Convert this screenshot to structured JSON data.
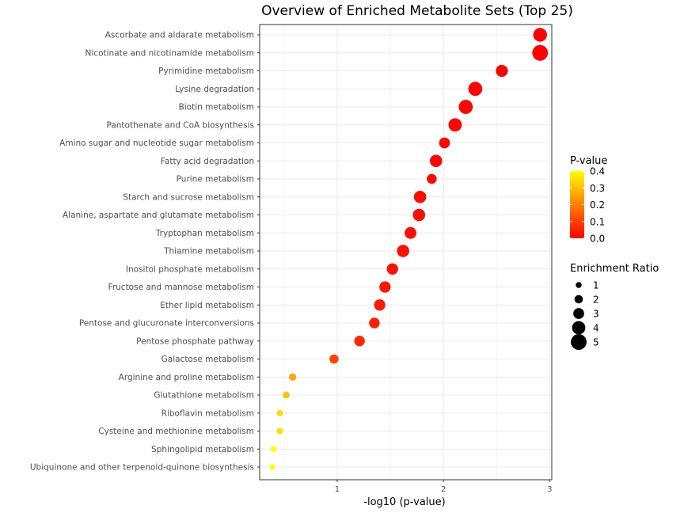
{
  "chart_data": {
    "type": "scatter",
    "title": "Overview of Enriched Metabolite Sets (Top 25)",
    "xlabel": "-log10 (p-value)",
    "ylabel": "",
    "xlim": [
      0.27,
      3.02
    ],
    "xticks": [
      "1",
      "2",
      "3"
    ],
    "grid": true,
    "points": [
      {
        "label": "Ascorbate and aldarate metabolism",
        "x": 2.91,
        "p": 0.0012,
        "ratio": 4.2
      },
      {
        "label": "Nicotinate and nicotinamide metabolism",
        "x": 2.91,
        "p": 0.0012,
        "ratio": 5.0
      },
      {
        "label": "Pyrimidine metabolism",
        "x": 2.55,
        "p": 0.0028,
        "ratio": 3.5
      },
      {
        "label": "Lysine degradation",
        "x": 2.3,
        "p": 0.005,
        "ratio": 4.3
      },
      {
        "label": "Biotin metabolism",
        "x": 2.21,
        "p": 0.0062,
        "ratio": 4.3
      },
      {
        "label": "Pantothenate and CoA biosynthesis",
        "x": 2.11,
        "p": 0.0078,
        "ratio": 4.0
      },
      {
        "label": "Amino sugar and nucleotide sugar metabolism",
        "x": 2.01,
        "p": 0.0098,
        "ratio": 3.0
      },
      {
        "label": "Fatty acid degradation",
        "x": 1.93,
        "p": 0.0117,
        "ratio": 3.6
      },
      {
        "label": "Purine metabolism",
        "x": 1.89,
        "p": 0.0129,
        "ratio": 2.6
      },
      {
        "label": "Starch and sucrose metabolism",
        "x": 1.78,
        "p": 0.0166,
        "ratio": 3.6
      },
      {
        "label": "Alanine, aspartate and glutamate metabolism",
        "x": 1.77,
        "p": 0.017,
        "ratio": 3.6
      },
      {
        "label": "Tryptophan metabolism",
        "x": 1.69,
        "p": 0.0204,
        "ratio": 3.4
      },
      {
        "label": "Thiamine metabolism",
        "x": 1.62,
        "p": 0.024,
        "ratio": 3.6
      },
      {
        "label": "Inositol phosphate metabolism",
        "x": 1.52,
        "p": 0.0302,
        "ratio": 3.2
      },
      {
        "label": "Fructose and mannose metabolism",
        "x": 1.45,
        "p": 0.0355,
        "ratio": 3.2
      },
      {
        "label": "Ether lipid metabolism",
        "x": 1.4,
        "p": 0.0398,
        "ratio": 3.2
      },
      {
        "label": "Pentose and glucuronate interconversions",
        "x": 1.35,
        "p": 0.0447,
        "ratio": 2.9
      },
      {
        "label": "Pentose phosphate pathway",
        "x": 1.21,
        "p": 0.0617,
        "ratio": 2.9
      },
      {
        "label": "Galactose metabolism",
        "x": 0.97,
        "p": 0.107,
        "ratio": 2.3
      },
      {
        "label": "Arginine and proline metabolism",
        "x": 0.58,
        "p": 0.263,
        "ratio": 1.6
      },
      {
        "label": "Glutathione metabolism",
        "x": 0.52,
        "p": 0.302,
        "ratio": 1.4
      },
      {
        "label": "Riboflavin metabolism",
        "x": 0.46,
        "p": 0.347,
        "ratio": 1.2
      },
      {
        "label": "Cysteine and methionine metabolism",
        "x": 0.46,
        "p": 0.347,
        "ratio": 1.2
      },
      {
        "label": "Sphingolipid metabolism",
        "x": 0.4,
        "p": 0.398,
        "ratio": 1.0
      },
      {
        "label": "Ubiquinone and other terpenoid-quinone biosynthesis",
        "x": 0.39,
        "p": 0.407,
        "ratio": 0.9
      }
    ],
    "legend_color": {
      "title": "P-value",
      "labels": [
        "0.4",
        "0.3",
        "0.2",
        "0.1",
        "0.0"
      ],
      "colors": [
        "#FFFF00",
        "#FF0000"
      ]
    },
    "legend_size": {
      "title": "Enrichment Ratio",
      "labels": [
        "1",
        "2",
        "3",
        "4",
        "5"
      ]
    },
    "legend_placement": "right"
  }
}
